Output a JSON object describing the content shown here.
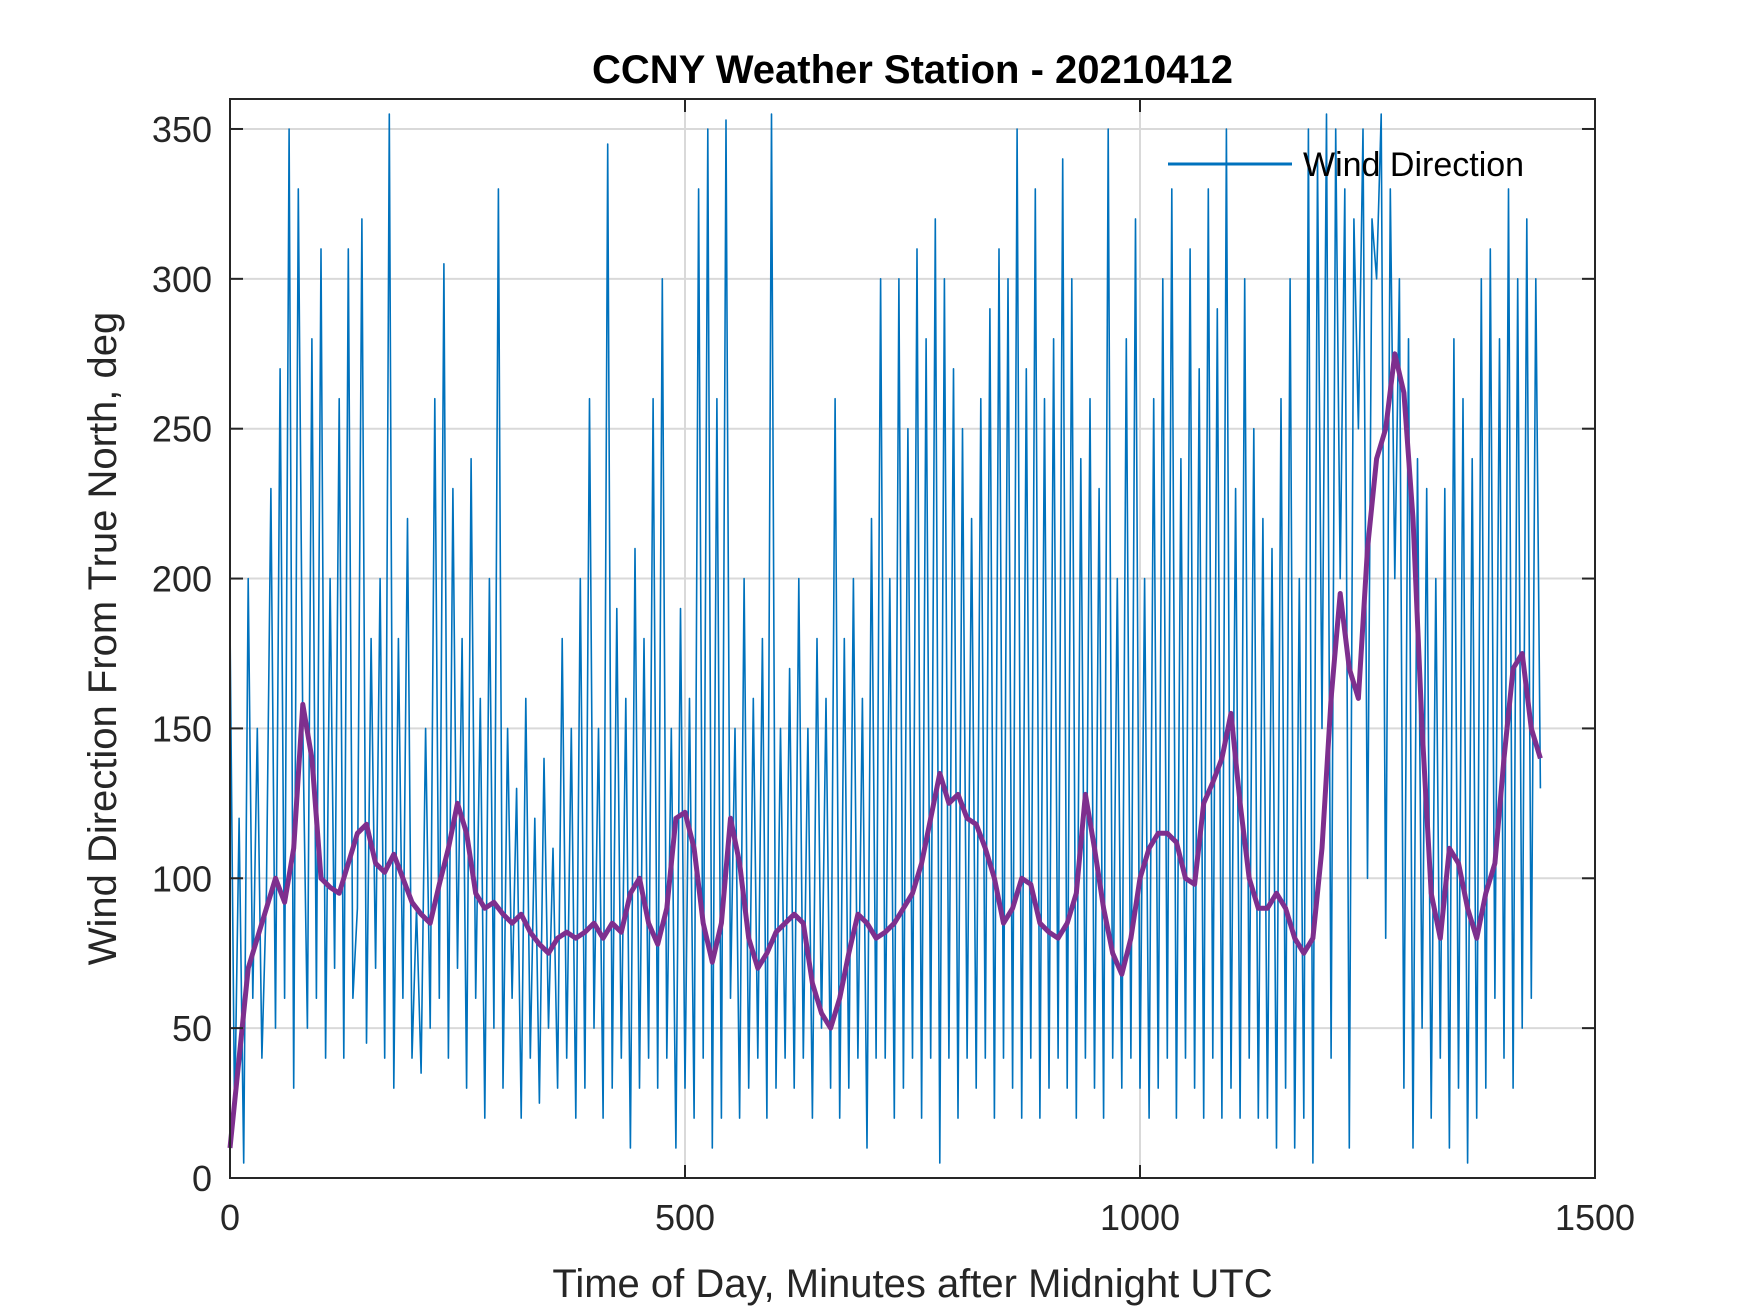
{
  "chart_data": {
    "type": "line",
    "title": "CCNY Weather Station - 20210412",
    "xlabel": "Time of Day, Minutes after Midnight UTC",
    "ylabel": "Wind Direction From True North, deg",
    "xlim": [
      0,
      1500
    ],
    "ylim": [
      0,
      360
    ],
    "xticks": [
      0,
      500,
      1000,
      1500
    ],
    "yticks": [
      0,
      50,
      100,
      150,
      200,
      250,
      300,
      350
    ],
    "grid": true,
    "legend": {
      "placement": "top-right",
      "entries": [
        "Wind Direction"
      ]
    },
    "series": [
      {
        "name": "Wind Direction",
        "color": "#0072BD",
        "x_start": 0,
        "x_step": 5,
        "values": [
          185,
          20,
          120,
          5,
          200,
          60,
          150,
          40,
          95,
          230,
          50,
          270,
          60,
          350,
          30,
          330,
          150,
          50,
          280,
          60,
          310,
          40,
          200,
          70,
          260,
          40,
          310,
          60,
          90,
          320,
          45,
          180,
          70,
          200,
          40,
          355,
          30,
          180,
          60,
          220,
          40,
          90,
          35,
          150,
          50,
          260,
          60,
          305,
          40,
          230,
          70,
          180,
          30,
          240,
          60,
          160,
          20,
          200,
          50,
          330,
          30,
          150,
          60,
          130,
          20,
          160,
          40,
          120,
          25,
          140,
          50,
          110,
          30,
          180,
          40,
          150,
          20,
          200,
          30,
          260,
          50,
          150,
          20,
          345,
          30,
          190,
          40,
          160,
          10,
          210,
          30,
          180,
          40,
          260,
          30,
          300,
          40,
          150,
          10,
          190,
          30,
          160,
          20,
          330,
          40,
          350,
          10,
          260,
          20,
          353,
          60,
          150,
          20,
          200,
          30,
          160,
          40,
          180,
          20,
          355,
          30,
          150,
          40,
          170,
          30,
          200,
          40,
          150,
          20,
          180,
          50,
          160,
          30,
          260,
          20,
          180,
          30,
          200,
          40,
          160,
          10,
          220,
          40,
          300,
          40,
          200,
          20,
          300,
          30,
          250,
          40,
          310,
          20,
          280,
          40,
          320,
          5,
          300,
          40,
          270,
          20,
          250,
          40,
          220,
          30,
          260,
          40,
          290,
          20,
          310,
          40,
          300,
          30,
          350,
          20,
          270,
          40,
          330,
          20,
          260,
          30,
          280,
          40,
          340,
          30,
          300,
          20,
          240,
          40,
          260,
          30,
          230,
          20,
          350,
          40,
          200,
          30,
          280,
          40,
          320,
          30,
          200,
          20,
          260,
          30,
          300,
          40,
          330,
          20,
          240,
          40,
          310,
          30,
          270,
          20,
          330,
          40,
          290,
          20,
          350,
          30,
          230,
          20,
          300,
          40,
          250,
          20,
          220,
          20,
          210,
          10,
          260,
          30,
          300,
          10,
          200,
          20,
          350,
          5,
          340,
          150,
          355,
          40,
          350,
          200,
          330,
          10,
          320,
          250,
          350,
          100,
          320,
          300,
          355,
          80,
          330,
          200,
          300,
          30,
          280,
          10,
          240,
          50,
          230,
          20,
          200,
          40,
          230,
          10,
          280,
          30,
          260,
          5,
          240,
          20,
          300,
          30,
          310,
          60,
          280,
          40,
          330,
          30,
          300,
          50,
          320,
          60,
          300,
          130
        ]
      },
      {
        "color": "#7E2F8E",
        "x_start": 0,
        "x_step": 10,
        "values": [
          10,
          40,
          70,
          80,
          90,
          100,
          92,
          110,
          158,
          140,
          100,
          97,
          95,
          105,
          115,
          118,
          105,
          102,
          108,
          100,
          92,
          88,
          85,
          98,
          110,
          125,
          115,
          95,
          90,
          92,
          88,
          85,
          88,
          82,
          78,
          75,
          80,
          82,
          80,
          82,
          85,
          80,
          85,
          82,
          95,
          100,
          85,
          78,
          90,
          120,
          122,
          110,
          85,
          72,
          85,
          120,
          105,
          80,
          70,
          75,
          82,
          85,
          88,
          85,
          65,
          55,
          50,
          60,
          75,
          88,
          85,
          80,
          82,
          85,
          90,
          95,
          105,
          120,
          135,
          125,
          128,
          120,
          118,
          110,
          100,
          85,
          90,
          100,
          98,
          85,
          82,
          80,
          85,
          95,
          128,
          110,
          90,
          75,
          68,
          80,
          100,
          110,
          115,
          115,
          112,
          100,
          98,
          125,
          132,
          140,
          155,
          125,
          100,
          90,
          90,
          95,
          90,
          80,
          75,
          80,
          110,
          160,
          195,
          170,
          160,
          210,
          240,
          250,
          275,
          262,
          220,
          150,
          95,
          80,
          110,
          105,
          90,
          80,
          95,
          105,
          140,
          170,
          175,
          150,
          140
        ]
      }
    ]
  }
}
